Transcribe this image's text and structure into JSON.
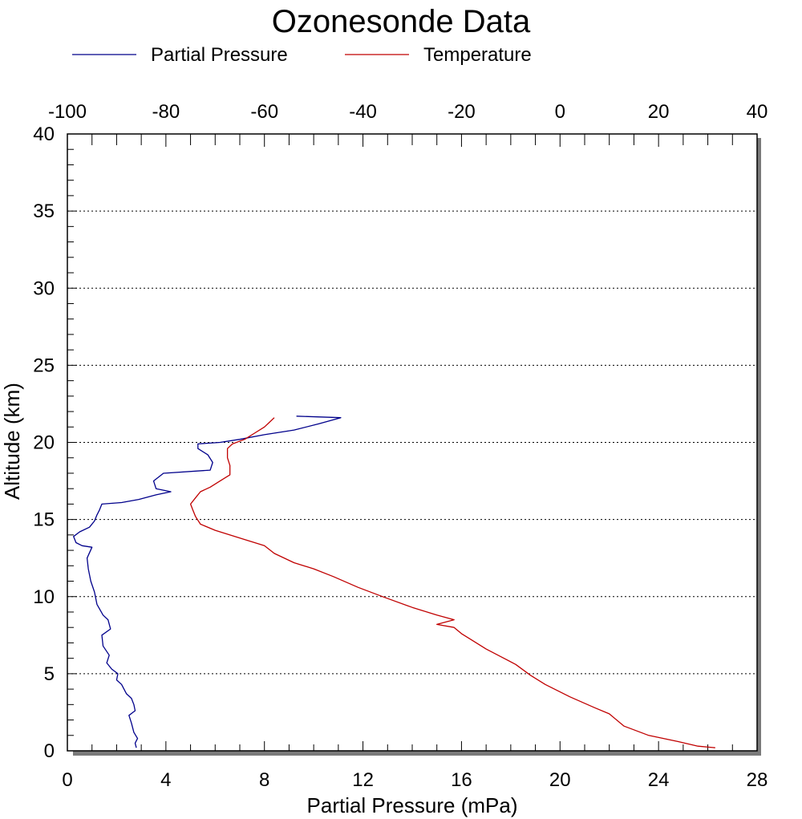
{
  "chart_data": {
    "type": "line",
    "title": "Ozonesonde Data",
    "legend": {
      "placement": "top",
      "entries": [
        {
          "label": "Partial Pressure",
          "color": "#00008b"
        },
        {
          "label": "Temperature",
          "color": "#c00000"
        }
      ]
    },
    "axes": {
      "x_bottom": {
        "label": "Partial Pressure (mPa)",
        "range": [
          0,
          28
        ],
        "ticks": [
          "0",
          "4",
          "8",
          "12",
          "16",
          "20",
          "24",
          "28"
        ]
      },
      "x_top": {
        "label": "",
        "range": [
          -100,
          40
        ],
        "ticks": [
          "-100",
          "-80",
          "-60",
          "-40",
          "-20",
          "0",
          "20",
          "40"
        ]
      },
      "y": {
        "label": "Altitude (km)",
        "range": [
          0,
          40
        ],
        "ticks": [
          "0",
          "5",
          "10",
          "15",
          "20",
          "25",
          "30",
          "35",
          "40"
        ]
      }
    },
    "grid": {
      "horizontal": true,
      "style": "dotted",
      "at": [
        5,
        10,
        15,
        20,
        25,
        30,
        35
      ]
    },
    "series": [
      {
        "name": "Partial Pressure",
        "axis": "x_bottom",
        "color": "#00008b",
        "points": [
          [
            2.8,
            0.2
          ],
          [
            2.75,
            0.5
          ],
          [
            2.85,
            0.8
          ],
          [
            2.7,
            1.2
          ],
          [
            2.6,
            1.8
          ],
          [
            2.5,
            2.3
          ],
          [
            2.75,
            2.6
          ],
          [
            2.7,
            3.0
          ],
          [
            2.6,
            3.4
          ],
          [
            2.4,
            3.7
          ],
          [
            2.2,
            4.3
          ],
          [
            2.0,
            4.6
          ],
          [
            2.05,
            5.0
          ],
          [
            1.8,
            5.3
          ],
          [
            1.6,
            5.7
          ],
          [
            1.7,
            6.2
          ],
          [
            1.45,
            6.8
          ],
          [
            1.4,
            7.5
          ],
          [
            1.75,
            7.9
          ],
          [
            1.65,
            8.5
          ],
          [
            1.45,
            8.8
          ],
          [
            1.2,
            9.5
          ],
          [
            1.1,
            10.3
          ],
          [
            0.95,
            11.0
          ],
          [
            0.85,
            11.8
          ],
          [
            0.8,
            12.5
          ],
          [
            1.0,
            13.2
          ],
          [
            0.6,
            13.3
          ],
          [
            0.35,
            13.5
          ],
          [
            0.25,
            13.9
          ],
          [
            0.5,
            14.2
          ],
          [
            0.9,
            14.5
          ],
          [
            1.1,
            14.9
          ],
          [
            1.2,
            15.3
          ],
          [
            1.3,
            15.6
          ],
          [
            1.4,
            16.0
          ],
          [
            2.2,
            16.1
          ],
          [
            2.9,
            16.3
          ],
          [
            3.6,
            16.6
          ],
          [
            4.2,
            16.8
          ],
          [
            3.6,
            17.0
          ],
          [
            3.5,
            17.5
          ],
          [
            3.9,
            18.0
          ],
          [
            5.8,
            18.2
          ],
          [
            5.9,
            18.7
          ],
          [
            5.7,
            19.2
          ],
          [
            5.3,
            19.6
          ],
          [
            5.3,
            19.9
          ],
          [
            6.2,
            20.0
          ],
          [
            7.0,
            20.2
          ],
          [
            8.0,
            20.5
          ],
          [
            9.2,
            20.8
          ],
          [
            10.2,
            21.2
          ],
          [
            11.1,
            21.6
          ],
          [
            9.3,
            21.7
          ]
        ]
      },
      {
        "name": "Temperature",
        "axis": "x_top",
        "color": "#c00000",
        "points": [
          [
            31.5,
            0.2
          ],
          [
            28,
            0.3
          ],
          [
            24,
            0.6
          ],
          [
            18,
            1.0
          ],
          [
            13,
            1.6
          ],
          [
            10,
            2.4
          ],
          [
            7,
            2.8
          ],
          [
            2,
            3.5
          ],
          [
            -3,
            4.3
          ],
          [
            -6,
            4.9
          ],
          [
            -9,
            5.6
          ],
          [
            -12,
            6.1
          ],
          [
            -15,
            6.6
          ],
          [
            -18,
            7.2
          ],
          [
            -20,
            7.6
          ],
          [
            -21.5,
            8.0
          ],
          [
            -25,
            8.2
          ],
          [
            -21.5,
            8.5
          ],
          [
            -25,
            8.8
          ],
          [
            -30,
            9.3
          ],
          [
            -36,
            10.0
          ],
          [
            -41,
            10.6
          ],
          [
            -46,
            11.3
          ],
          [
            -50,
            11.8
          ],
          [
            -54,
            12.2
          ],
          [
            -58,
            12.8
          ],
          [
            -60,
            13.3
          ],
          [
            -64,
            13.7
          ],
          [
            -70,
            14.3
          ],
          [
            -73,
            14.7
          ],
          [
            -74,
            15.2
          ],
          [
            -74.5,
            15.6
          ],
          [
            -75,
            16.0
          ],
          [
            -74,
            16.4
          ],
          [
            -73,
            16.8
          ],
          [
            -71,
            17.1
          ],
          [
            -69,
            17.5
          ],
          [
            -67,
            17.9
          ],
          [
            -67,
            18.5
          ],
          [
            -67.5,
            19.0
          ],
          [
            -67.5,
            19.6
          ],
          [
            -66.5,
            19.9
          ],
          [
            -64,
            20.2
          ],
          [
            -62,
            20.6
          ],
          [
            -60,
            21.0
          ],
          [
            -59,
            21.3
          ],
          [
            -58,
            21.6
          ]
        ]
      }
    ]
  }
}
